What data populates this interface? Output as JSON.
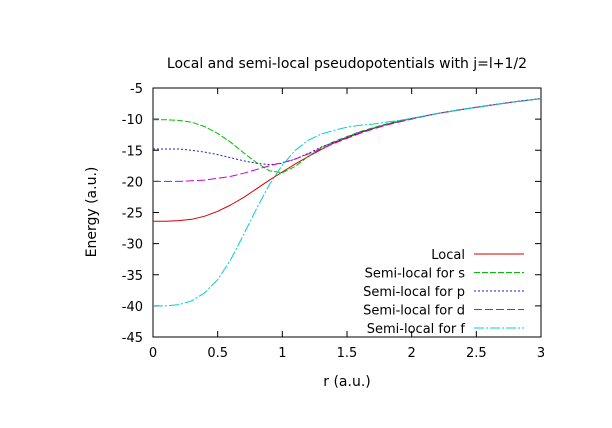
{
  "chart_data": {
    "type": "line",
    "title": "Local and semi-local pseudopotentials with j=l+1/2",
    "xlabel": "r (a.u.)",
    "ylabel": "Energy (a.u.)",
    "xlim": [
      0,
      3
    ],
    "ylim": [
      -45,
      -5
    ],
    "x_ticks": [
      "0",
      "0.5",
      "1",
      "1.5",
      "2",
      "2.5",
      "3"
    ],
    "y_ticks": [
      "-5",
      "-10",
      "-15",
      "-20",
      "-25",
      "-30",
      "-35",
      "-40",
      "-45"
    ],
    "grid": false,
    "legend_position": "bottom-right",
    "x": [
      0,
      0.1,
      0.2,
      0.3,
      0.4,
      0.5,
      0.6,
      0.7,
      0.8,
      0.9,
      1.0,
      1.1,
      1.2,
      1.3,
      1.4,
      1.5,
      1.6,
      1.7,
      1.8,
      1.9,
      2.0,
      2.2,
      2.4,
      2.6,
      2.8,
      3.0
    ],
    "series": [
      {
        "name": "Local",
        "color": "#d00000",
        "dash": "solid",
        "values": [
          -26.4,
          -26.4,
          -26.3,
          -26.1,
          -25.6,
          -24.8,
          -23.8,
          -22.6,
          -21.2,
          -19.8,
          -18.5,
          -17.2,
          -16.0,
          -14.9,
          -13.8,
          -13.0,
          -12.2,
          -11.5,
          -10.9,
          -10.4,
          -9.9,
          -9.1,
          -8.4,
          -7.8,
          -7.2,
          -6.7
        ]
      },
      {
        "name": "Semi-local for s",
        "color": "#00c000",
        "dash": "6,2",
        "values": [
          -10.1,
          -10.1,
          -10.2,
          -10.5,
          -11.2,
          -12.3,
          -13.7,
          -15.4,
          -17.0,
          -18.3,
          -18.6,
          -17.6,
          -16.0,
          -14.6,
          -13.6,
          -12.8,
          -12.0,
          -11.4,
          -10.8,
          -10.3,
          -9.9,
          -9.1,
          -8.4,
          -7.8,
          -7.2,
          -6.7
        ]
      },
      {
        "name": "Semi-local for p",
        "color": "#2020c0",
        "dash": "2,2",
        "values": [
          -14.8,
          -14.8,
          -14.8,
          -15.0,
          -15.3,
          -15.7,
          -16.2,
          -16.7,
          -17.1,
          -17.3,
          -17.1,
          -16.4,
          -15.5,
          -14.5,
          -13.7,
          -12.9,
          -12.1,
          -11.5,
          -10.9,
          -10.4,
          -9.9,
          -9.1,
          -8.4,
          -7.8,
          -7.2,
          -6.7
        ]
      },
      {
        "name": "Semi-local for d",
        "color": "#d000d0",
        "dash": "8,3",
        "values": [
          -20.0,
          -20.0,
          -20.0,
          -19.9,
          -19.8,
          -19.5,
          -19.2,
          -18.7,
          -18.1,
          -17.5,
          -17.0,
          -16.4,
          -15.6,
          -14.8,
          -13.9,
          -13.1,
          -12.3,
          -11.6,
          -11.0,
          -10.5,
          -10.0,
          -9.1,
          -8.4,
          -7.8,
          -7.2,
          -6.7
        ]
      },
      {
        "name": "Semi-local for f",
        "color": "#00d0d0",
        "dash": "10,2,2,2",
        "values": [
          -40.0,
          -40.0,
          -39.8,
          -39.2,
          -37.9,
          -35.8,
          -32.6,
          -28.6,
          -24.4,
          -20.5,
          -17.4,
          -15.0,
          -13.4,
          -12.4,
          -11.8,
          -11.3,
          -11.0,
          -10.8,
          -10.5,
          -10.2,
          -9.9,
          -9.1,
          -8.4,
          -7.8,
          -7.2,
          -6.7
        ]
      }
    ]
  }
}
